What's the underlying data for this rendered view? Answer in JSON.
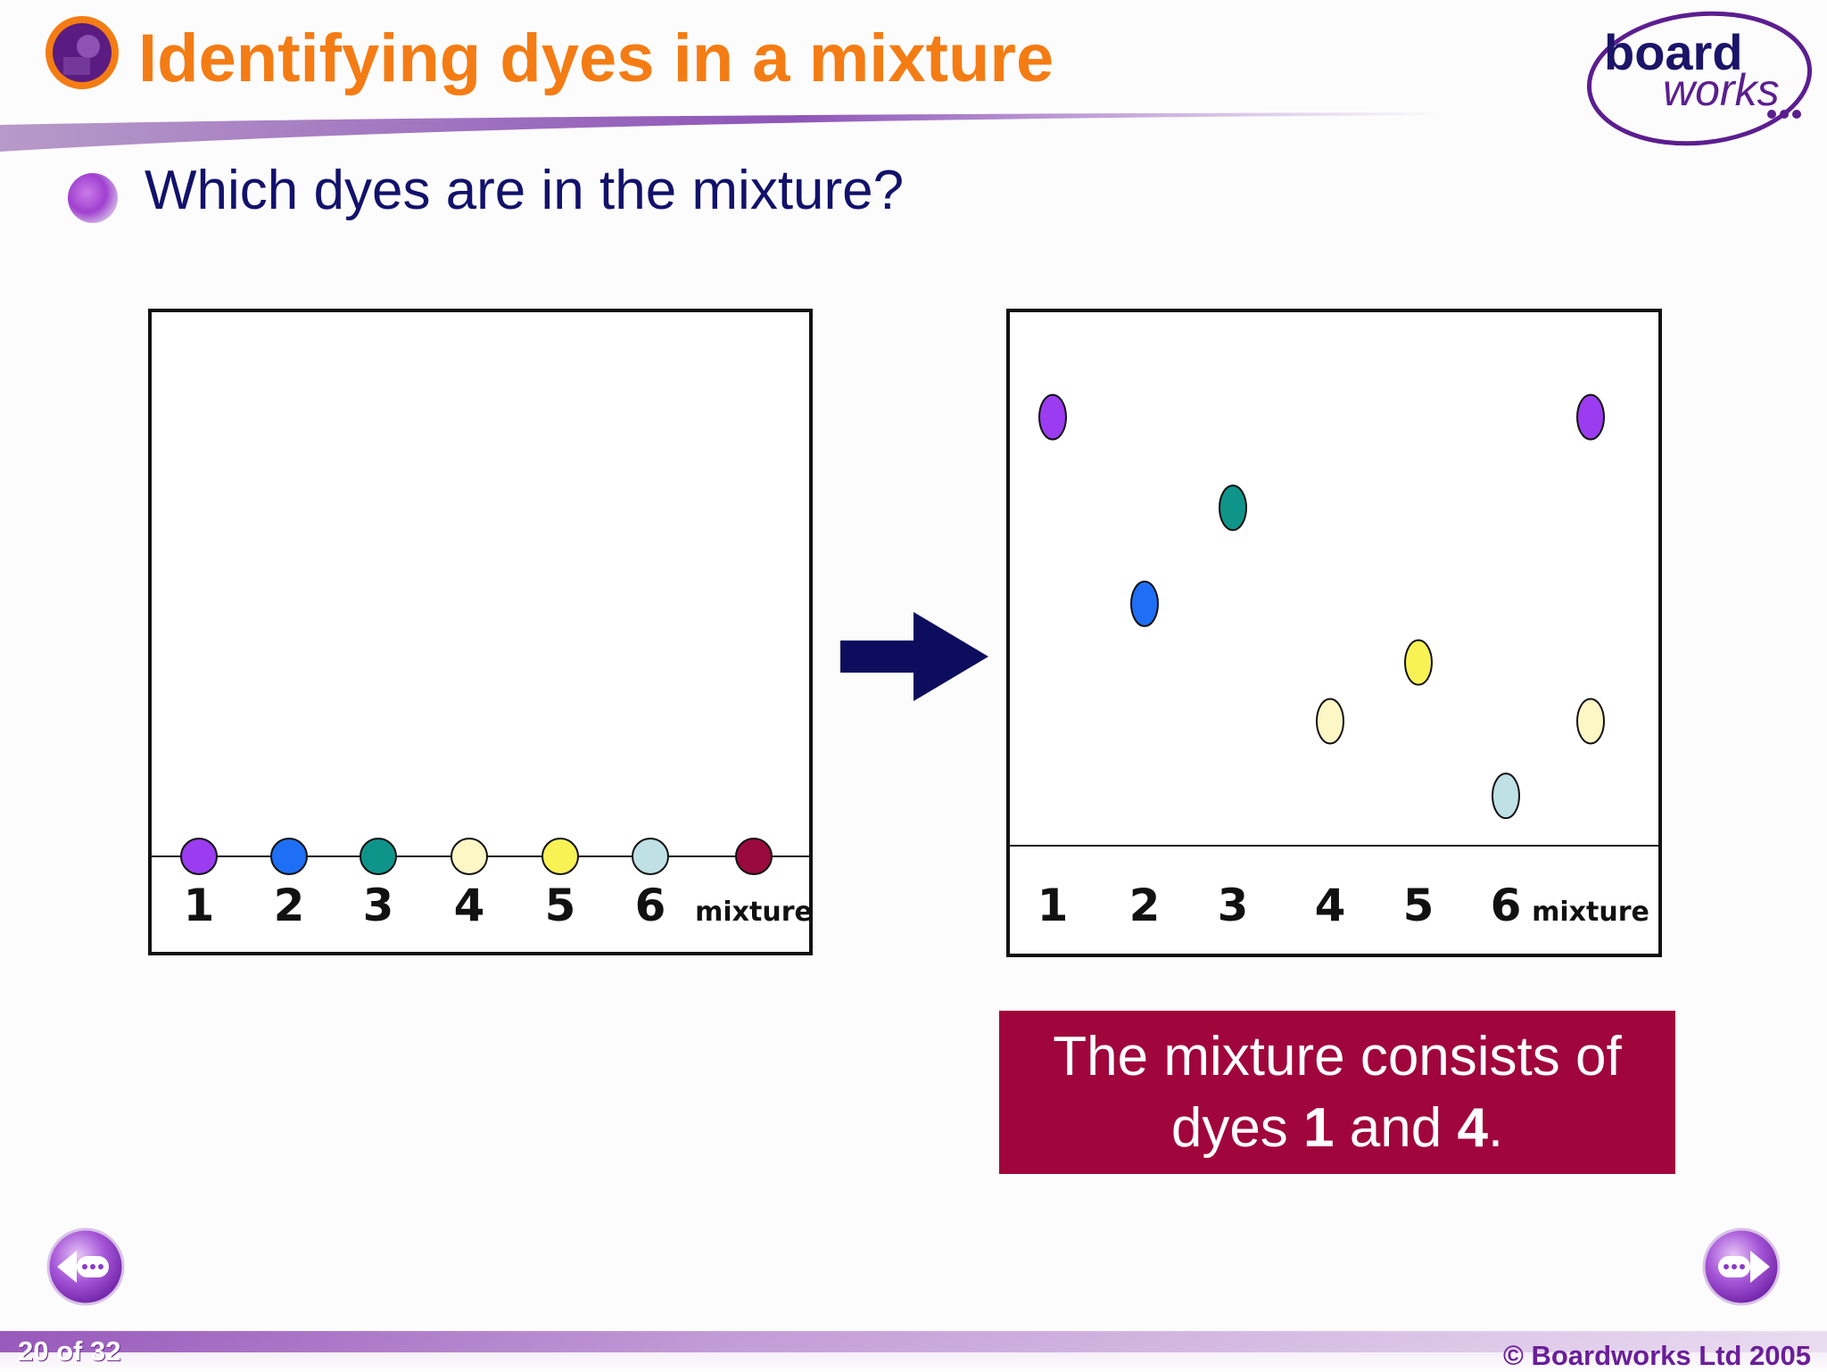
{
  "slide": {
    "title": "Identifying dyes in a mixture",
    "question": "Which dyes are in the mixture?",
    "slide_number": "20 of 32",
    "copyright": "© Boardworks Ltd 2005"
  },
  "brand": {
    "line1": "board",
    "line2": "works"
  },
  "answer": {
    "text_before": "The mixture consists of dyes ",
    "dye_a": "1",
    "and": " and ",
    "dye_b": "4",
    "end": "."
  },
  "lanes": [
    "1",
    "2",
    "3",
    "4",
    "5",
    "6",
    "mixture"
  ],
  "colors": {
    "title": "#f47c14",
    "question": "#12126b",
    "answer_bg": "#a0063b",
    "arrow": "#0d0d5e",
    "dye_1": "#9b3cf0",
    "dye_2": "#1e6ff5",
    "dye_3": "#0f948a",
    "dye_4": "#fdf6c5",
    "dye_5": "#f9f255",
    "dye_6": "#bfe0e5",
    "mixture": "#9a0a3c"
  },
  "chart_data": [
    {
      "type": "scatter",
      "title": "",
      "categories": [
        "1",
        "2",
        "3",
        "4",
        "5",
        "6",
        "mixture"
      ],
      "stage": "before",
      "spots": [
        {
          "lane": "1",
          "dye": "dye_1",
          "height": 0.0
        },
        {
          "lane": "2",
          "dye": "dye_2",
          "height": 0.0
        },
        {
          "lane": "3",
          "dye": "dye_3",
          "height": 0.0
        },
        {
          "lane": "4",
          "dye": "dye_4",
          "height": 0.0
        },
        {
          "lane": "5",
          "dye": "dye_5",
          "height": 0.0
        },
        {
          "lane": "6",
          "dye": "dye_6",
          "height": 0.0
        },
        {
          "lane": "mixture",
          "dye": "mixture",
          "height": 0.0
        }
      ]
    },
    {
      "type": "scatter",
      "title": "",
      "categories": [
        "1",
        "2",
        "3",
        "4",
        "5",
        "6",
        "mixture"
      ],
      "stage": "after",
      "spots": [
        {
          "lane": "1",
          "dye": "dye_1",
          "height": 0.79
        },
        {
          "lane": "2",
          "dye": "dye_2",
          "height": 0.44
        },
        {
          "lane": "3",
          "dye": "dye_3",
          "height": 0.62
        },
        {
          "lane": "4",
          "dye": "dye_4",
          "height": 0.22
        },
        {
          "lane": "5",
          "dye": "dye_5",
          "height": 0.33
        },
        {
          "lane": "6",
          "dye": "dye_6",
          "height": 0.08
        },
        {
          "lane": "mixture",
          "dye": "dye_1",
          "height": 0.79
        },
        {
          "lane": "mixture",
          "dye": "dye_4",
          "height": 0.22
        }
      ]
    }
  ]
}
